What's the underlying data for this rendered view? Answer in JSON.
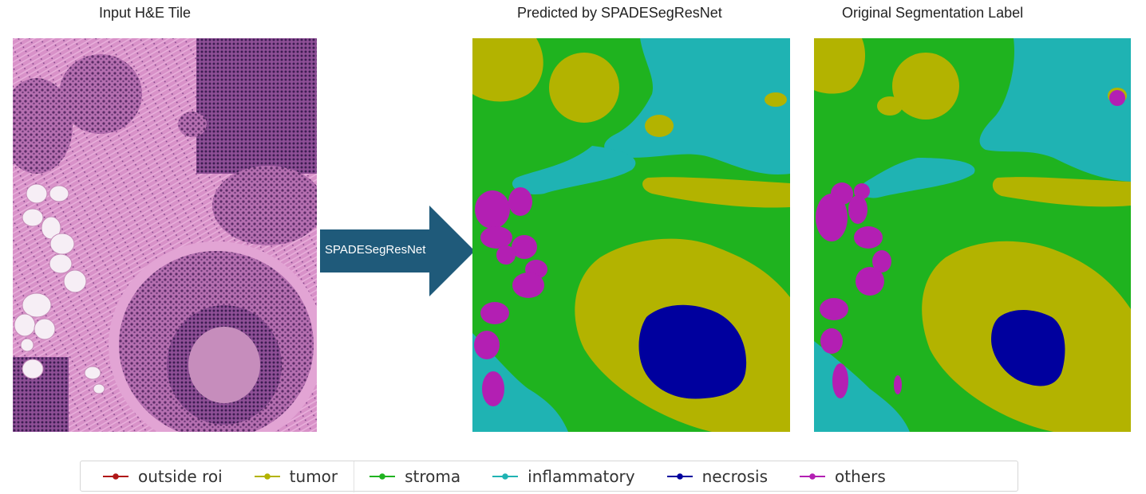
{
  "titles": {
    "input": "Input H&E Tile",
    "predicted": "Predicted  by SPADESegResNet",
    "original": "Original Segmentation Label"
  },
  "arrow": {
    "label": "SPADESegResNet",
    "color": "#1f5a7a"
  },
  "legend": {
    "items": [
      {
        "label": "outside roi",
        "color": "#b01717"
      },
      {
        "label": "tumor",
        "color": "#b3b300"
      },
      {
        "label": "stroma",
        "color": "#1fb31f"
      },
      {
        "label": "inflammatory",
        "color": "#1fb3b3"
      },
      {
        "label": "necrosis",
        "color": "#00009e"
      },
      {
        "label": "others",
        "color": "#b31fb3"
      }
    ]
  },
  "class_colors": {
    "tumor": "#b3b300",
    "stroma": "#1fb31f",
    "inflammatory": "#1fb3b3",
    "necrosis": "#00009e",
    "others": "#b31fb3"
  }
}
